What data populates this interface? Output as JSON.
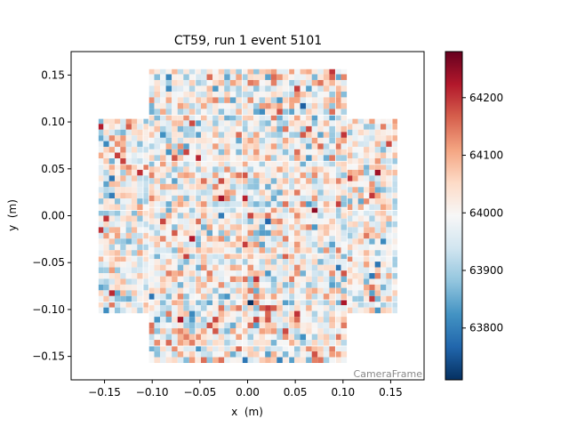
{
  "chart_data": {
    "type": "heatmap",
    "title": "CT59, run 1 event 5101",
    "xlabel": "x  (m)",
    "ylabel": "y  (m)",
    "frame_label": "CameraFrame",
    "xlim": [
      -0.185,
      0.185
    ],
    "ylim": [
      -0.175,
      0.175
    ],
    "x_ticks": [
      -0.15,
      -0.1,
      -0.05,
      0.0,
      0.05,
      0.1,
      0.15
    ],
    "x_tick_labels": [
      "−0.15",
      "−0.10",
      "−0.05",
      "0.00",
      "0.05",
      "0.10",
      "0.15"
    ],
    "y_ticks": [
      0.15,
      0.1,
      0.05,
      0.0,
      -0.05,
      -0.1,
      -0.15
    ],
    "y_tick_labels": [
      "0.15",
      "0.10",
      "0.05",
      "0.00",
      "−0.05",
      "−0.10",
      "−0.15"
    ],
    "colorbar": {
      "min": 63710,
      "max": 64280,
      "ticks": [
        63800,
        63900,
        64000,
        64100,
        64200
      ],
      "tick_labels": [
        "63800",
        "63900",
        "64000",
        "64100",
        "64200"
      ],
      "colormap": "RdBu_r"
    },
    "camera": {
      "module_pixels": 8,
      "pixel_pitch_m": 0.0062,
      "central_block": {
        "x_range": [
          -0.104,
          0.104
        ],
        "y_range": [
          -0.157,
          0.157
        ]
      },
      "side_blocks": {
        "x_range": [
          -0.157,
          0.157
        ],
        "y_range": [
          -0.104,
          0.104
        ]
      },
      "mean_value": 64000,
      "spread": 80,
      "pixel_values": "random-per-pixel, approx. 63710-64280"
    }
  }
}
